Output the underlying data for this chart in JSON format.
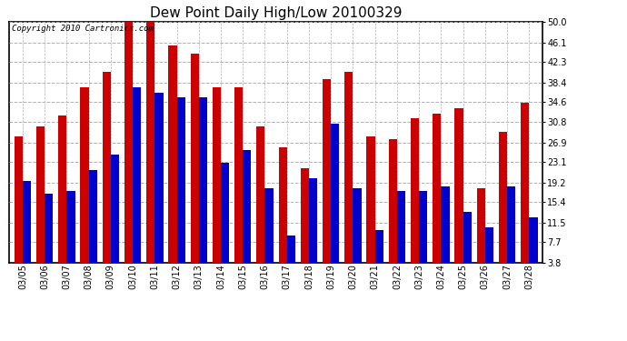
{
  "title": "Dew Point Daily High/Low 20100329",
  "copyright": "Copyright 2010 Cartronics.com",
  "dates": [
    "03/05",
    "03/06",
    "03/07",
    "03/08",
    "03/09",
    "03/10",
    "03/11",
    "03/12",
    "03/13",
    "03/14",
    "03/15",
    "03/16",
    "03/17",
    "03/18",
    "03/19",
    "03/20",
    "03/21",
    "03/22",
    "03/23",
    "03/24",
    "03/25",
    "03/26",
    "03/27",
    "03/28"
  ],
  "highs": [
    28.0,
    30.0,
    32.0,
    37.5,
    40.5,
    50.0,
    50.0,
    45.5,
    44.0,
    37.5,
    37.5,
    30.0,
    26.0,
    22.0,
    39.0,
    40.5,
    28.0,
    27.5,
    31.5,
    32.5,
    33.5,
    18.0,
    29.0,
    34.5
  ],
  "lows": [
    19.5,
    17.0,
    17.5,
    21.5,
    24.5,
    37.5,
    36.5,
    35.5,
    35.5,
    23.0,
    25.5,
    18.0,
    9.0,
    20.0,
    30.5,
    18.0,
    10.0,
    17.5,
    17.5,
    18.5,
    13.5,
    10.5,
    18.5,
    12.5
  ],
  "high_color": "#cc0000",
  "low_color": "#0000cc",
  "background_color": "#ffffff",
  "plot_bg_color": "#ffffff",
  "grid_color": "#b0b0b0",
  "yticks": [
    3.8,
    7.7,
    11.5,
    15.4,
    19.2,
    23.1,
    26.9,
    30.8,
    34.6,
    38.4,
    42.3,
    46.1,
    50.0
  ],
  "ymin": 3.8,
  "ymax": 50.0,
  "bar_width": 0.38,
  "title_fontsize": 11,
  "tick_fontsize": 7,
  "copyright_fontsize": 6.5
}
